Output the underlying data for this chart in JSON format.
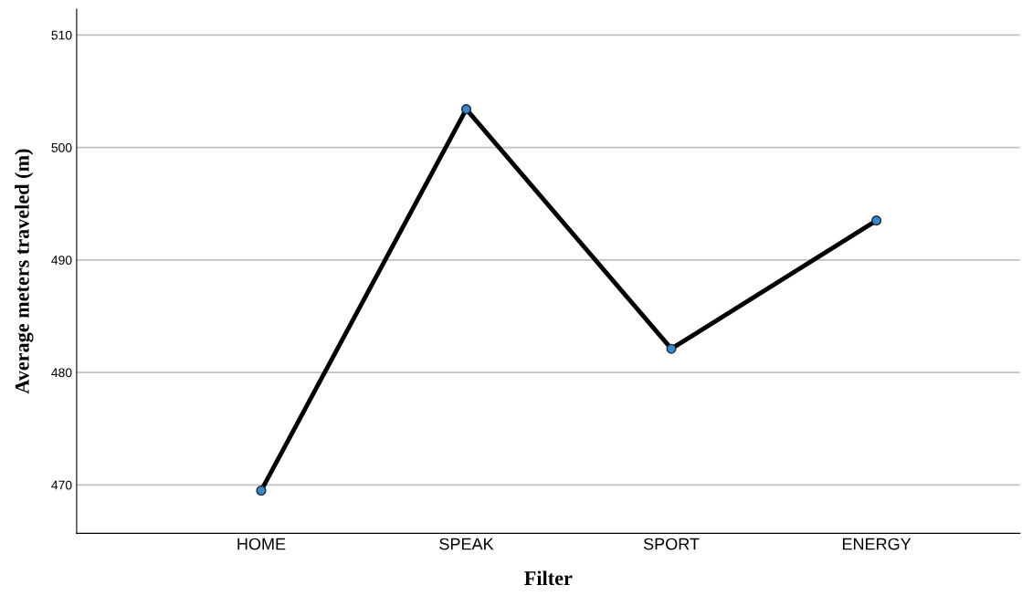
{
  "chart_data": {
    "type": "line",
    "xlabel": "Filter",
    "ylabel": "Average meters traveled (m)",
    "categories": [
      "HOME",
      "SPEAK",
      "SPORT",
      "ENERGY"
    ],
    "series": [
      {
        "color": "#000000",
        "values": [
          469.5,
          503.4,
          482.1,
          493.5
        ]
      }
    ],
    "ylim": [
      465.7,
      512.3
    ],
    "yticks": [
      470,
      480,
      490,
      500,
      510
    ],
    "grid": "y",
    "marker": "circle",
    "line_style": "solid"
  }
}
